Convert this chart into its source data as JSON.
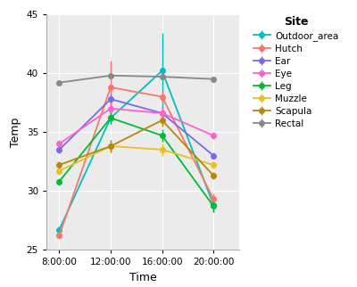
{
  "title": "",
  "xlabel": "Time",
  "ylabel": "Temp",
  "legend_title": "Site",
  "xlim": [
    7.0,
    22.0
  ],
  "ylim": [
    25,
    45
  ],
  "yticks": [
    25,
    30,
    35,
    40,
    45
  ],
  "xtick_labels": [
    "8:00:00",
    "12:00:00",
    "16:00:00",
    "20:00:00"
  ],
  "xtick_positions": [
    8,
    12,
    16,
    20
  ],
  "series": [
    {
      "name": "Outdoor_area",
      "color": "#00BFC4",
      "x": [
        8,
        12,
        16,
        20
      ],
      "y": [
        26.7,
        36.2,
        40.2,
        28.8
      ],
      "yerr": [
        0.3,
        0.5,
        3.2,
        0.6
      ]
    },
    {
      "name": "Hutch",
      "color": "#F8766D",
      "x": [
        8,
        12,
        16,
        20
      ],
      "y": [
        26.2,
        38.8,
        38.0,
        29.3
      ],
      "yerr": [
        0.3,
        2.3,
        0.5,
        0.5
      ]
    },
    {
      "name": "Ear",
      "color": "#7B68EE",
      "x": [
        8,
        12,
        16,
        20
      ],
      "y": [
        33.5,
        37.8,
        36.6,
        33.0
      ],
      "yerr": [
        0.3,
        0.5,
        0.5,
        0.3
      ]
    },
    {
      "name": "Eye",
      "color": "#FF61CC",
      "x": [
        8,
        12,
        16,
        20
      ],
      "y": [
        34.0,
        37.0,
        36.6,
        34.7
      ],
      "yerr": [
        0.3,
        0.5,
        0.5,
        0.3
      ]
    },
    {
      "name": "Leg",
      "color": "#00BA38",
      "x": [
        8,
        12,
        16,
        20
      ],
      "y": [
        30.8,
        36.2,
        34.7,
        28.7
      ],
      "yerr": [
        0.3,
        0.5,
        0.5,
        0.5
      ]
    },
    {
      "name": "Muzzle",
      "color": "#E8C020",
      "x": [
        8,
        12,
        16,
        20
      ],
      "y": [
        31.7,
        33.8,
        33.5,
        32.2
      ],
      "yerr": [
        0.3,
        0.5,
        0.5,
        0.3
      ]
    },
    {
      "name": "Scapula",
      "color": "#B8860B",
      "x": [
        8,
        12,
        16,
        20
      ],
      "y": [
        32.2,
        33.8,
        36.0,
        31.3
      ],
      "yerr": [
        0.3,
        0.5,
        0.5,
        0.3
      ]
    },
    {
      "name": "Rectal",
      "color": "#888888",
      "x": [
        8,
        12,
        16,
        20
      ],
      "y": [
        39.2,
        39.8,
        39.7,
        39.5
      ],
      "yerr": [
        0.15,
        0.15,
        0.15,
        0.15
      ]
    }
  ],
  "background_color": "#ffffff",
  "panel_background": "#ebebeb",
  "grid_color": "#ffffff",
  "legend_fontsize": 7.5,
  "axis_label_fontsize": 9,
  "tick_fontsize": 7.5
}
